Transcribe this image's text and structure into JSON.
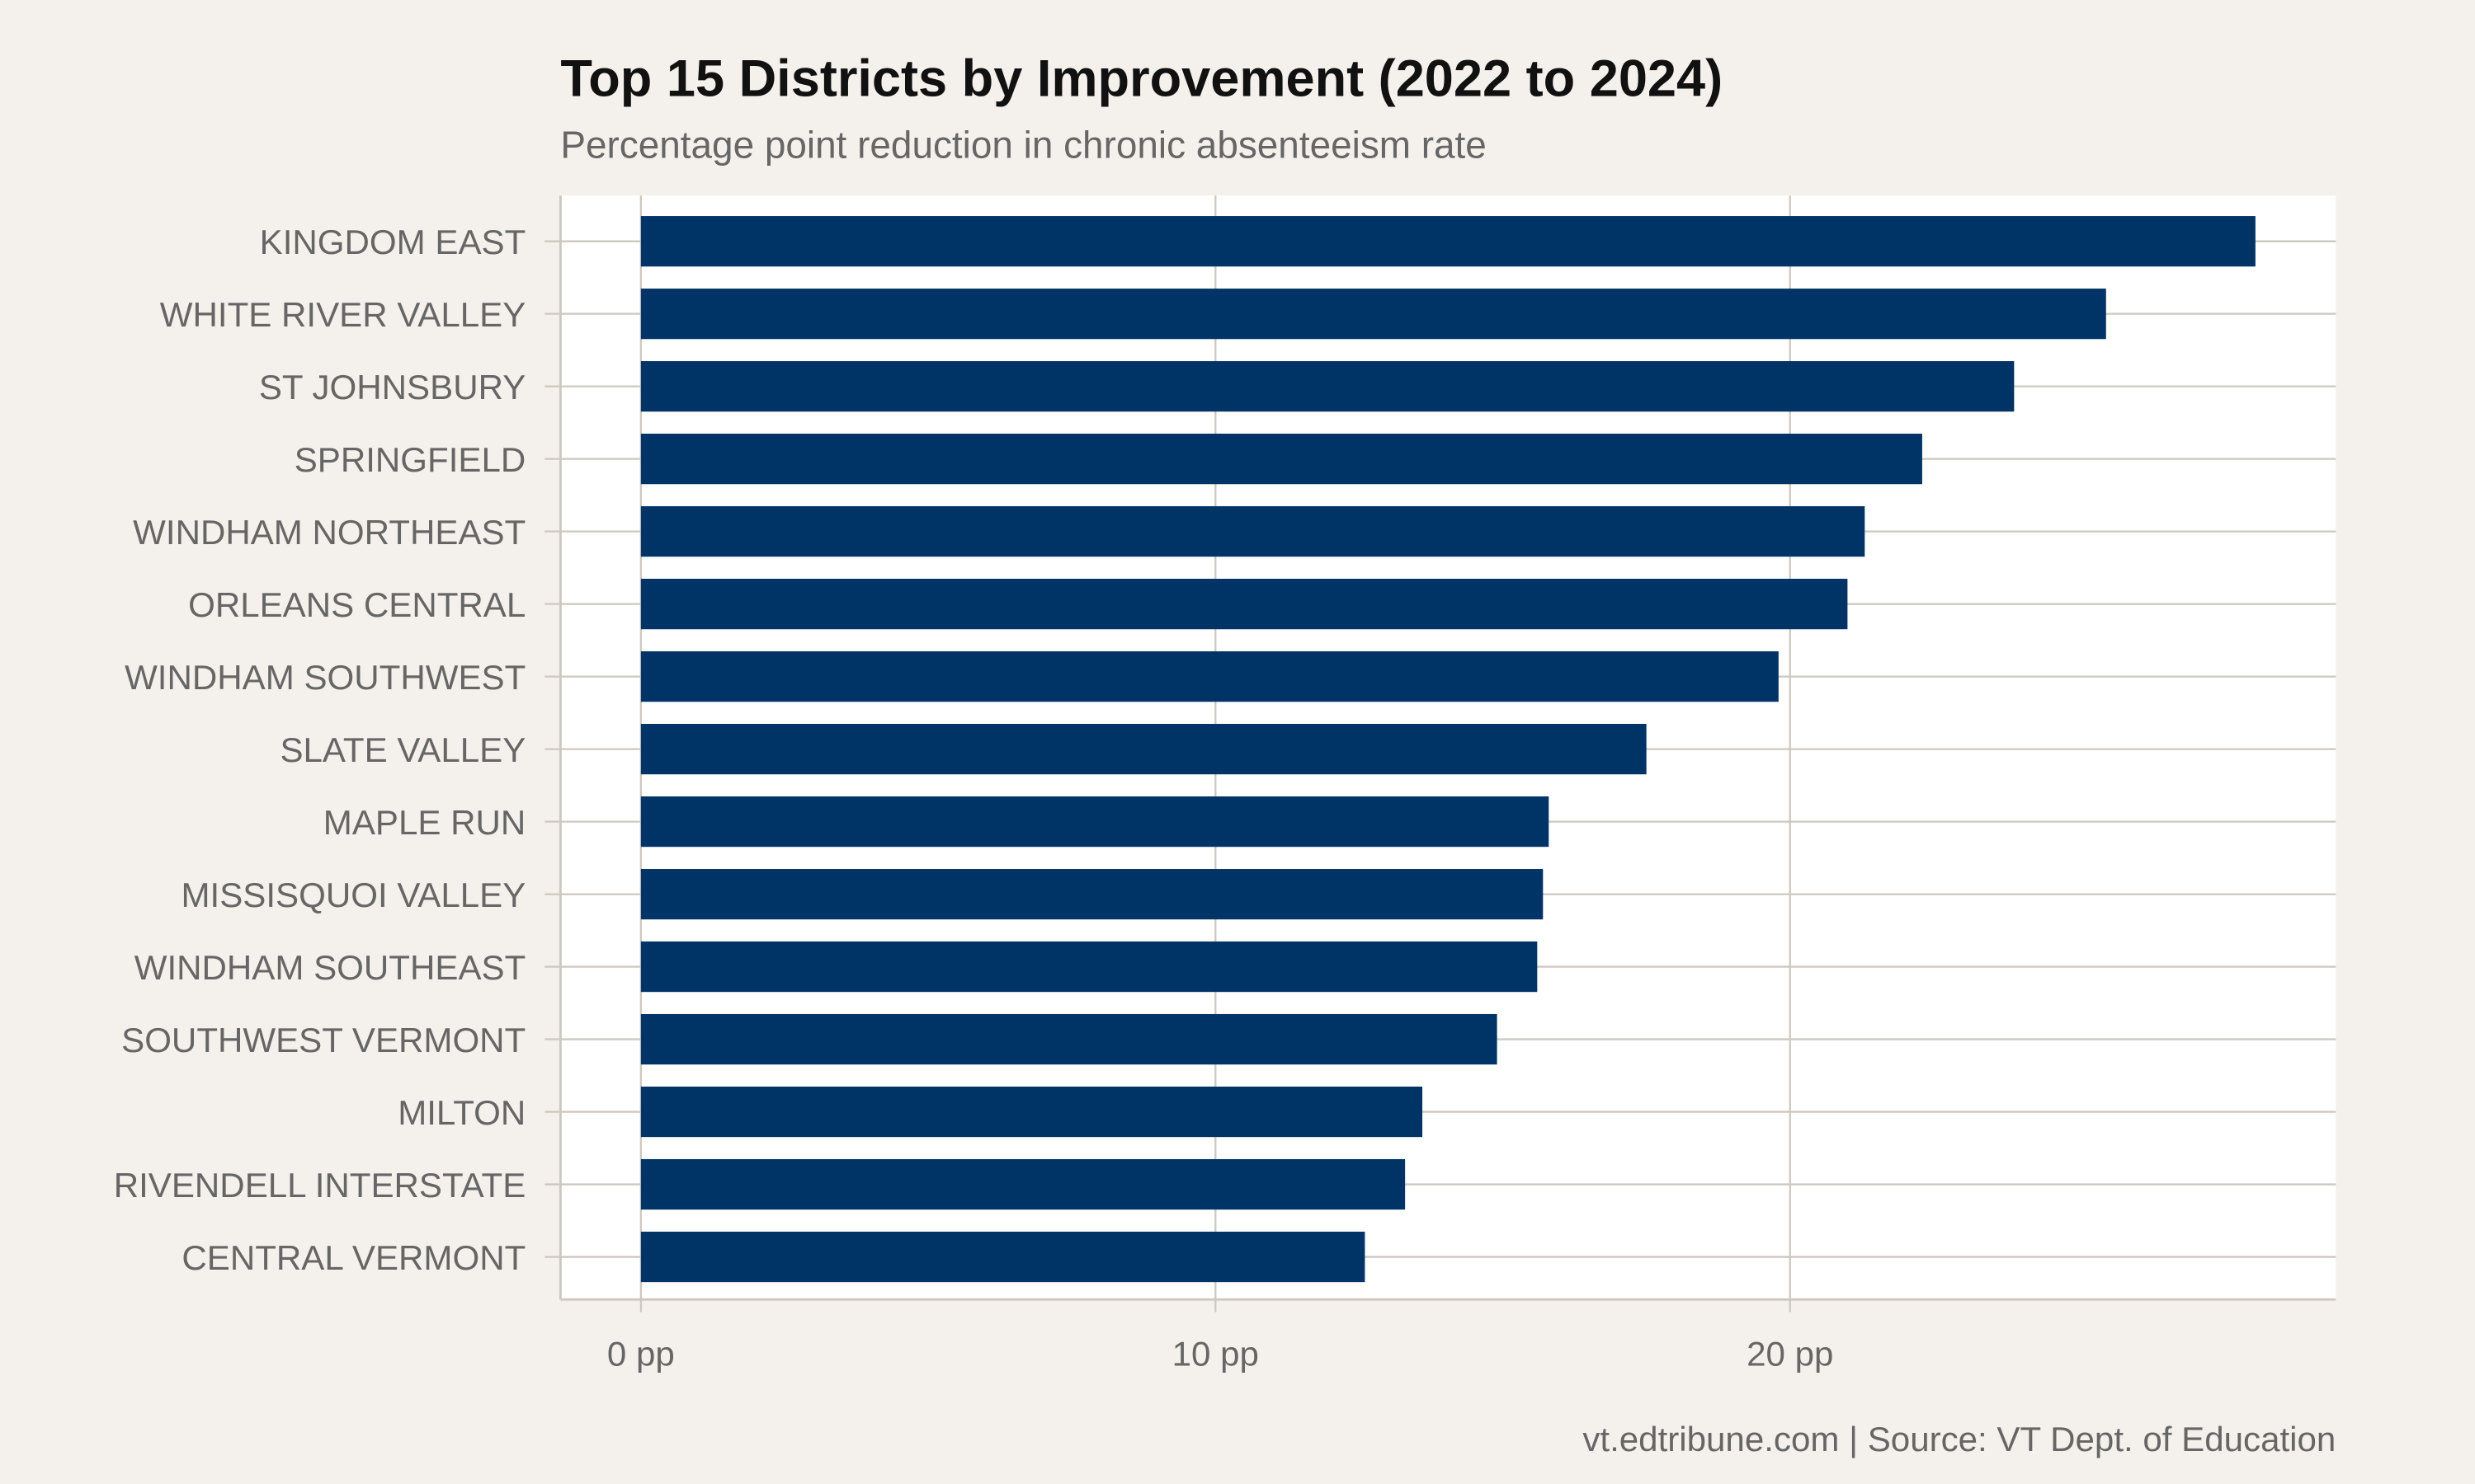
{
  "chart_data": {
    "type": "bar",
    "orientation": "horizontal",
    "title": "Top 15 Districts by Improvement (2022 to 2024)",
    "subtitle": "Percentage point reduction in chronic absenteeism rate",
    "caption": "vt.edtribune.com | Source: VT Dept. of Education",
    "xlabel": "",
    "ylabel": "",
    "xlim": [
      -1.4,
      29.5
    ],
    "xticks": [
      0,
      10,
      20
    ],
    "xtick_labels": [
      "0 pp",
      "10 pp",
      "20 pp"
    ],
    "grid": true,
    "categories": [
      "KINGDOM EAST",
      "WHITE RIVER VALLEY",
      "ST JOHNSBURY",
      "SPRINGFIELD",
      "WINDHAM NORTHEAST",
      "ORLEANS CENTRAL",
      "WINDHAM SOUTHWEST",
      "SLATE VALLEY",
      "MAPLE RUN",
      "MISSISQUOI VALLEY",
      "WINDHAM SOUTHEAST",
      "SOUTHWEST VERMONT",
      "MILTON",
      "RIVENDELL INTERSTATE",
      "CENTRAL VERMONT"
    ],
    "values": [
      28.1,
      25.5,
      23.9,
      22.3,
      21.3,
      21.0,
      19.8,
      17.5,
      15.8,
      15.7,
      15.6,
      14.9,
      13.6,
      13.3,
      12.6
    ],
    "colors": {
      "bar": "#003366",
      "background": "#f4f1ec",
      "panel": "#ffffff",
      "grid": "#cdc8bf",
      "label": "#666666",
      "title": "#111111"
    }
  }
}
